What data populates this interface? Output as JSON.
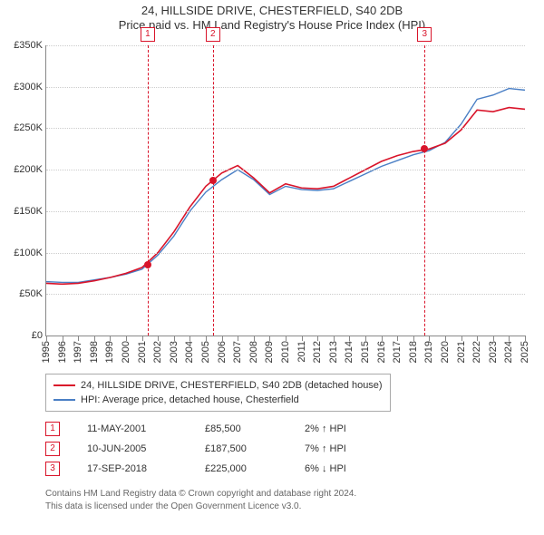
{
  "title_main": "24, HILLSIDE DRIVE, CHESTERFIELD, S40 2DB",
  "title_sub": "Price paid vs. HM Land Registry's House Price Index (HPI)",
  "chart": {
    "type": "line",
    "background_color": "#ffffff",
    "grid_color": "#cccccc",
    "axis_color": "#888888",
    "y": {
      "min": 0,
      "max": 350000,
      "step": 50000,
      "labels": [
        "£0",
        "£50K",
        "£100K",
        "£150K",
        "£200K",
        "£250K",
        "£300K",
        "£350K"
      ]
    },
    "x": {
      "years": [
        1995,
        1996,
        1997,
        1998,
        1999,
        2000,
        2001,
        2002,
        2003,
        2004,
        2005,
        2006,
        2007,
        2008,
        2009,
        2010,
        2011,
        2012,
        2013,
        2014,
        2015,
        2016,
        2017,
        2018,
        2019,
        2020,
        2021,
        2022,
        2023,
        2024,
        2025
      ],
      "min": 1995,
      "max": 2025
    },
    "series": [
      {
        "id": "property",
        "label": "24, HILLSIDE DRIVE, CHESTERFIELD, S40 2DB (detached house)",
        "color": "#d9142a",
        "width": 1.6,
        "values": [
          63000,
          62000,
          63000,
          66000,
          70000,
          75000,
          82000,
          100000,
          125000,
          155000,
          180000,
          196000,
          205000,
          190000,
          172000,
          183000,
          178000,
          177000,
          180000,
          190000,
          200000,
          210000,
          217000,
          222000,
          225000,
          232000,
          248000,
          272000,
          270000,
          275000,
          273000
        ]
      },
      {
        "id": "hpi",
        "label": "HPI: Average price, detached house, Chesterfield",
        "color": "#4a7fc5",
        "width": 1.4,
        "values": [
          65000,
          64000,
          64000,
          67000,
          70000,
          74000,
          80000,
          97000,
          120000,
          150000,
          173000,
          188000,
          200000,
          188000,
          170000,
          180000,
          176000,
          175000,
          177000,
          186000,
          195000,
          204000,
          211000,
          218000,
          223000,
          233000,
          255000,
          285000,
          290000,
          298000,
          296000
        ]
      }
    ],
    "markers": [
      {
        "n": "1",
        "year_frac": 2001.36,
        "price": 85500,
        "color": "#d9142a"
      },
      {
        "n": "2",
        "year_frac": 2005.44,
        "price": 187500,
        "color": "#d9142a"
      },
      {
        "n": "3",
        "year_frac": 2018.71,
        "price": 225000,
        "color": "#d9142a"
      }
    ]
  },
  "legend": {
    "items": [
      {
        "color": "#d9142a",
        "text": "24, HILLSIDE DRIVE, CHESTERFIELD, S40 2DB (detached house)"
      },
      {
        "color": "#4a7fc5",
        "text": "HPI: Average price, detached house, Chesterfield"
      }
    ]
  },
  "sales": [
    {
      "n": "1",
      "color": "#d9142a",
      "date": "11-MAY-2001",
      "price": "£85,500",
      "delta": "2% ↑ HPI"
    },
    {
      "n": "2",
      "color": "#d9142a",
      "date": "10-JUN-2005",
      "price": "£187,500",
      "delta": "7% ↑ HPI"
    },
    {
      "n": "3",
      "color": "#d9142a",
      "date": "17-SEP-2018",
      "price": "£225,000",
      "delta": "6% ↓ HPI"
    }
  ],
  "attribution": {
    "line1": "Contains HM Land Registry data © Crown copyright and database right 2024.",
    "line2": "This data is licensed under the Open Government Licence v3.0."
  }
}
